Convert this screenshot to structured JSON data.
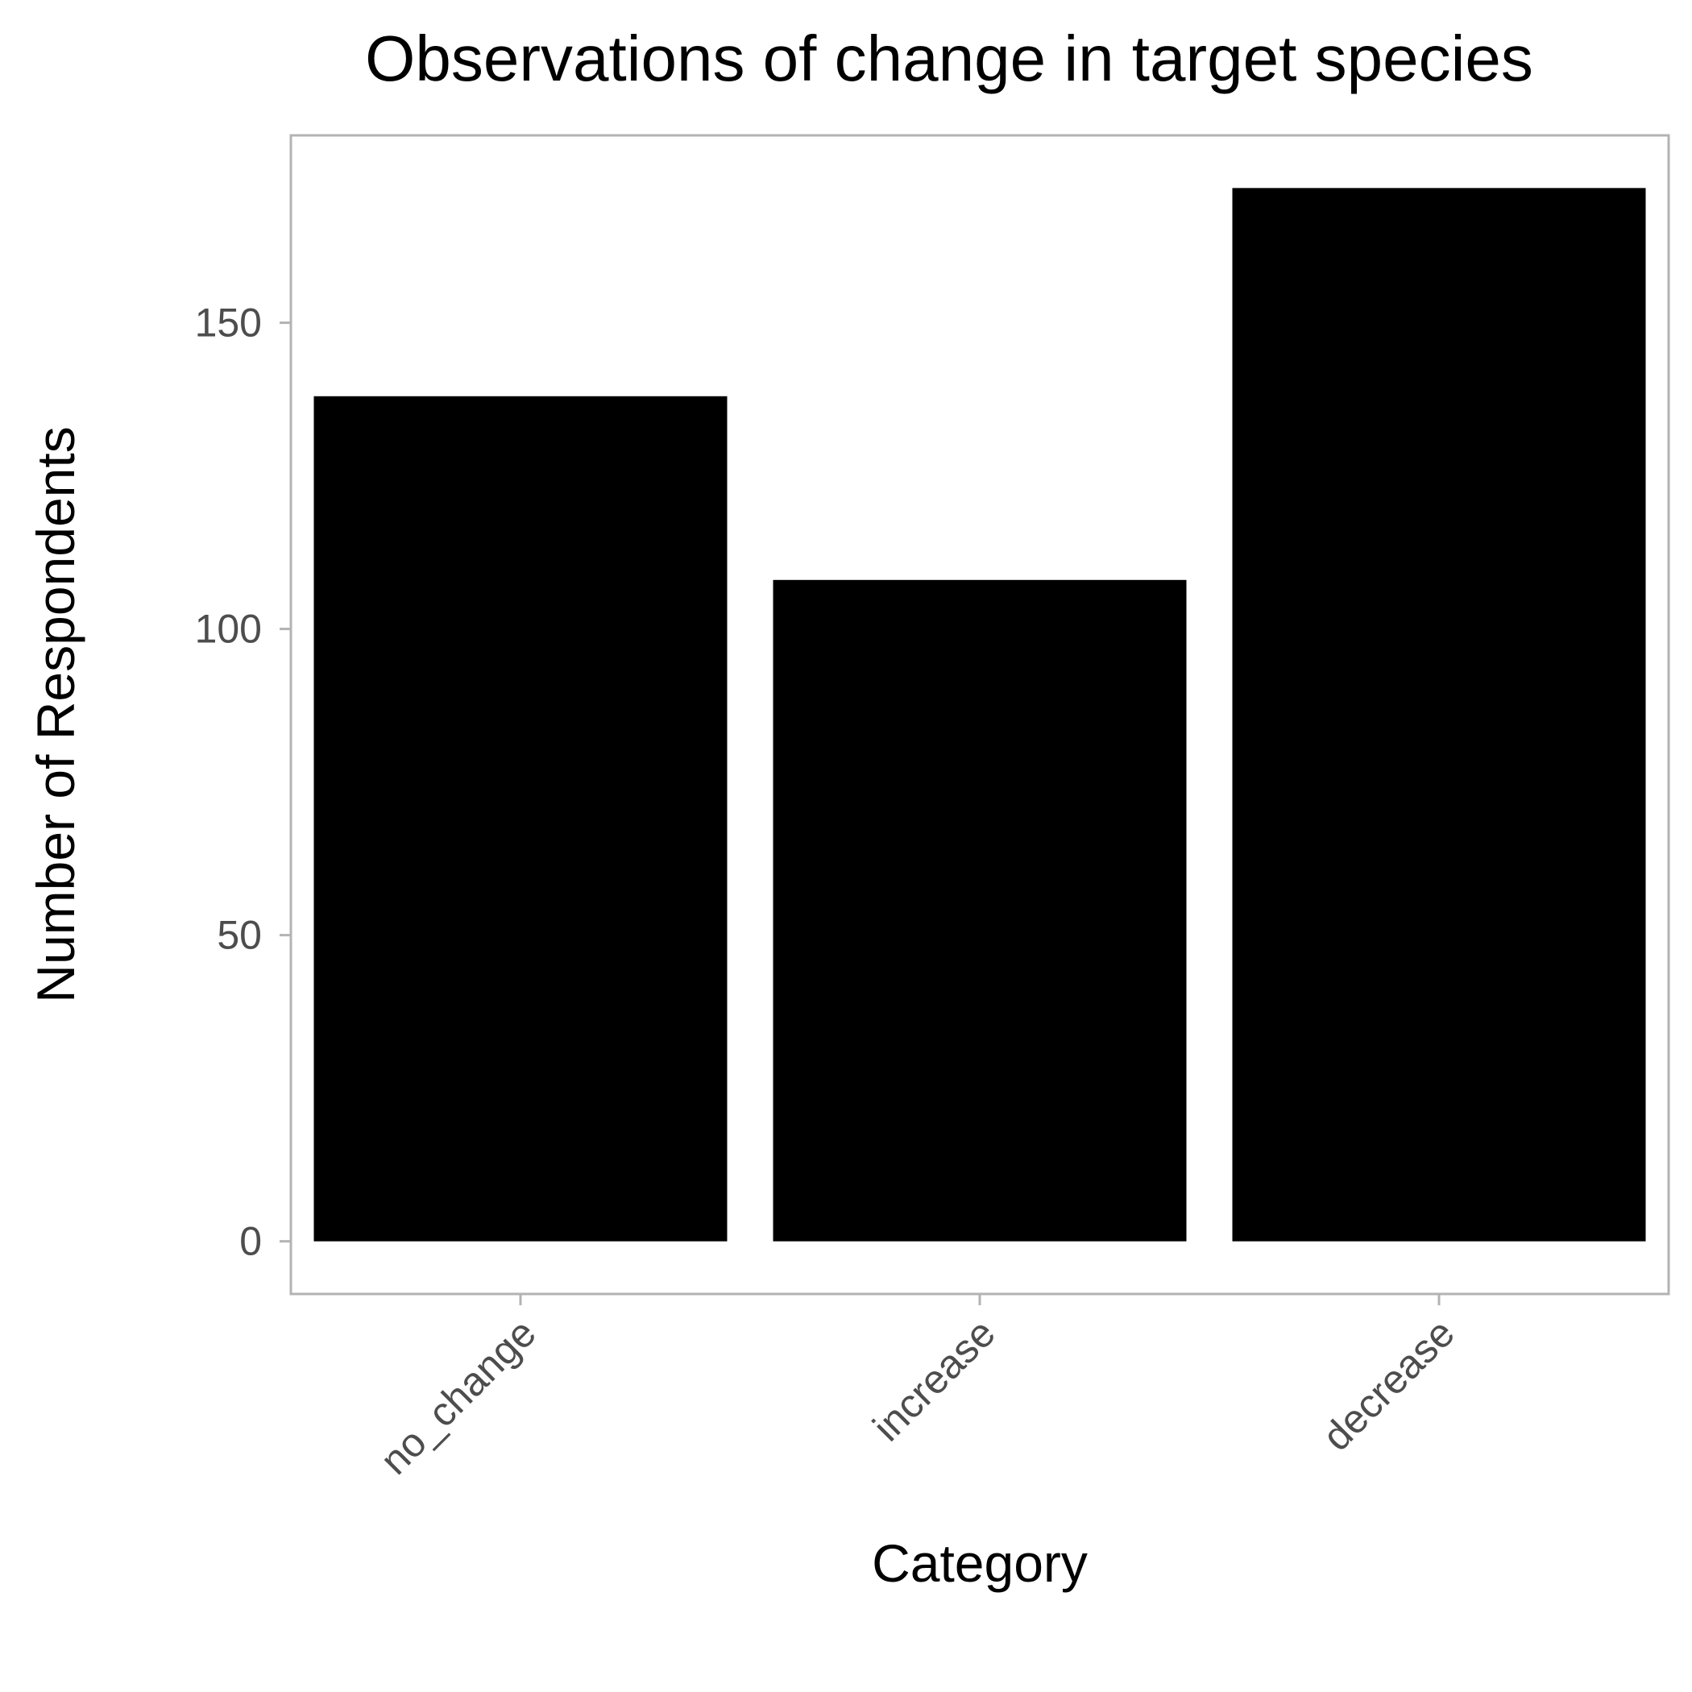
{
  "chart_data": {
    "type": "bar",
    "title": "Observations of change in target species",
    "xlabel": "Category",
    "ylabel": "Number of Respondents",
    "categories": [
      "no_change",
      "increase",
      "decrease"
    ],
    "values": [
      138,
      108,
      172
    ],
    "y_ticks": [
      0,
      50,
      100,
      150
    ],
    "ylim": [
      -8.6,
      180.6
    ],
    "grid": false,
    "legend": "none",
    "colors": {
      "bar": "#000000",
      "panel_border": "#b3b3b3",
      "tick_label": "#4d4d4d",
      "background": "#ffffff"
    }
  }
}
